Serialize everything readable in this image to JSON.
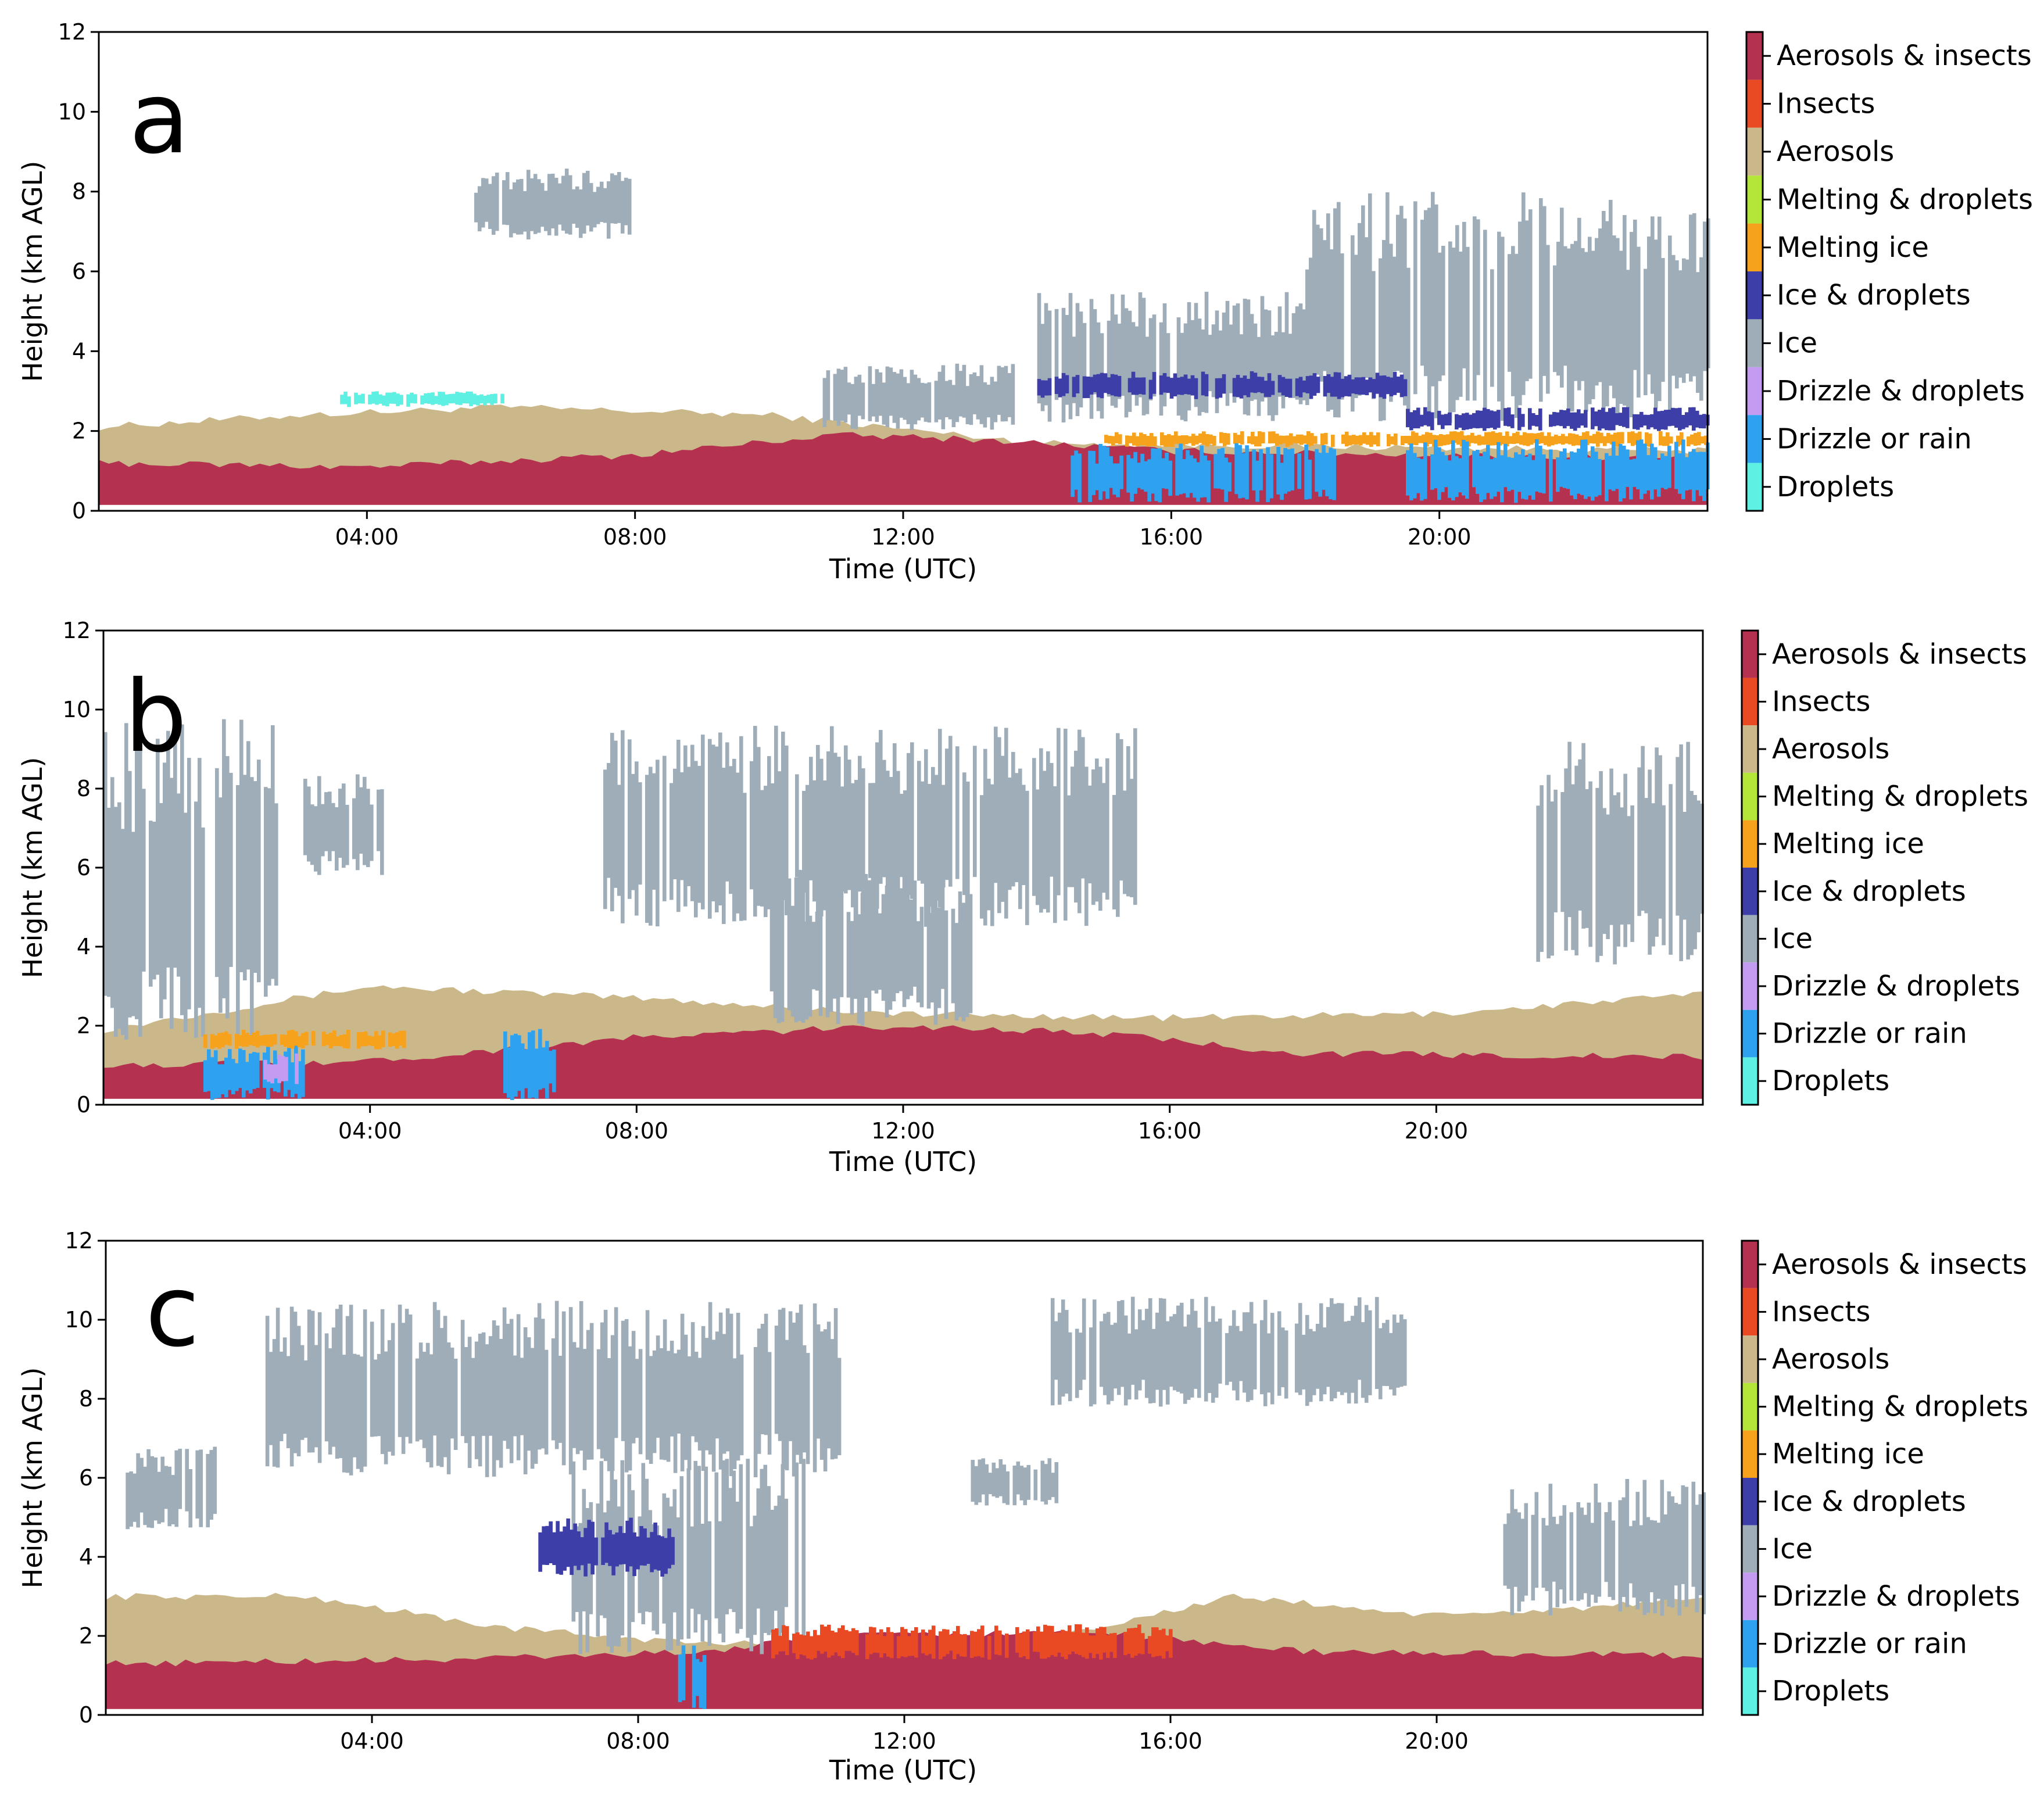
{
  "categories": [
    {
      "name": "Droplets",
      "color": "#5df0e3"
    },
    {
      "name": "Drizzle or rain",
      "color": "#2ea2ef"
    },
    {
      "name": "Drizzle & droplets",
      "color": "#c39cf2"
    },
    {
      "name": "Ice",
      "color": "#9eadb8"
    },
    {
      "name": "Ice & droplets",
      "color": "#3e3ea8"
    },
    {
      "name": "Melting ice",
      "color": "#f7a21c"
    },
    {
      "name": "Melting & droplets",
      "color": "#b3e639"
    },
    {
      "name": "Aerosols",
      "color": "#cbb88a"
    },
    {
      "name": "Insects",
      "color": "#ea4a23"
    },
    {
      "name": "Aerosols & insects",
      "color": "#b53150"
    }
  ],
  "chart_data": [
    {
      "type": "heatmap",
      "panel_label": "a",
      "xlabel": "Time (UTC)",
      "ylabel": "Height (km AGL)",
      "xlim": [
        0,
        24
      ],
      "ylim": [
        0,
        12
      ],
      "xtick_values": [
        4,
        8,
        12,
        16,
        20
      ],
      "xtick_labels": [
        "04:00",
        "08:00",
        "12:00",
        "16:00",
        "20:00"
      ],
      "ytick_values": [
        0,
        2,
        4,
        6,
        8,
        10,
        12
      ],
      "ytick_labels": [
        "0",
        "2",
        "4",
        "6",
        "8",
        "10",
        "12"
      ],
      "layers": {
        "aerosols_top": [
          [
            0,
            2.1
          ],
          [
            3,
            2.4
          ],
          [
            6,
            2.6
          ],
          [
            10,
            2.4
          ],
          [
            14,
            1.7
          ],
          [
            24,
            1.5
          ]
        ],
        "aerosols_insects_top": [
          [
            0,
            1.2
          ],
          [
            4,
            1.1
          ],
          [
            8,
            1.4
          ],
          [
            11,
            1.9
          ],
          [
            13,
            1.8
          ],
          [
            16,
            1.5
          ],
          [
            24,
            1.3
          ]
        ]
      },
      "regions": [
        {
          "category": "Ice",
          "x": [
            5.6,
            7.9
          ],
          "y": [
            6.8,
            8.6
          ]
        },
        {
          "category": "Ice",
          "x": [
            10.8,
            13.7
          ],
          "y": [
            2.0,
            3.7
          ]
        },
        {
          "category": "Ice",
          "x": [
            14.0,
            18.0
          ],
          "y": [
            2.2,
            5.5
          ]
        },
        {
          "category": "Ice",
          "x": [
            18.0,
            24.0
          ],
          "y": [
            2.2,
            8.0
          ]
        },
        {
          "category": "Ice & droplets",
          "x": [
            14.0,
            19.5
          ],
          "y": [
            2.8,
            3.5
          ]
        },
        {
          "category": "Ice & droplets",
          "x": [
            19.5,
            24.0
          ],
          "y": [
            2.0,
            2.6
          ]
        },
        {
          "category": "Melting ice",
          "x": [
            15.0,
            24.0
          ],
          "y": [
            1.6,
            2.0
          ]
        },
        {
          "category": "Drizzle or rain",
          "x": [
            14.5,
            18.5
          ],
          "y": [
            0.2,
            1.7
          ]
        },
        {
          "category": "Drizzle or rain",
          "x": [
            19.5,
            24.0
          ],
          "y": [
            0.2,
            1.8
          ]
        },
        {
          "category": "Droplets",
          "x": [
            3.6,
            6.0
          ],
          "y": [
            2.6,
            3.0
          ]
        }
      ]
    },
    {
      "type": "heatmap",
      "panel_label": "b",
      "xlabel": "Time (UTC)",
      "ylabel": "Height (km AGL)",
      "xlim": [
        0,
        24
      ],
      "ylim": [
        0,
        12
      ],
      "xtick_values": [
        4,
        8,
        12,
        16,
        20
      ],
      "xtick_labels": [
        "04:00",
        "08:00",
        "12:00",
        "16:00",
        "20:00"
      ],
      "ytick_values": [
        0,
        2,
        4,
        6,
        8,
        10,
        12
      ],
      "ytick_labels": [
        "0",
        "2",
        "4",
        "6",
        "8",
        "10",
        "12"
      ],
      "layers": {
        "aerosols_top": [
          [
            0,
            1.9
          ],
          [
            4,
            3.0
          ],
          [
            8,
            2.7
          ],
          [
            12,
            2.3
          ],
          [
            16,
            2.2
          ],
          [
            20,
            2.3
          ],
          [
            24,
            2.8
          ]
        ],
        "aerosols_insects_top": [
          [
            0,
            1.0
          ],
          [
            4,
            1.1
          ],
          [
            8,
            1.7
          ],
          [
            12,
            2.0
          ],
          [
            15,
            1.8
          ],
          [
            18,
            1.3
          ],
          [
            24,
            1.2
          ]
        ]
      },
      "regions": [
        {
          "category": "Ice",
          "x": [
            0.0,
            2.6
          ],
          "y": [
            1.5,
            9.8
          ]
        },
        {
          "category": "Ice",
          "x": [
            3.0,
            4.2
          ],
          "y": [
            5.8,
            8.4
          ]
        },
        {
          "category": "Ice",
          "x": [
            7.5,
            15.5
          ],
          "y": [
            4.5,
            9.6
          ]
        },
        {
          "category": "Ice",
          "x": [
            10.0,
            13.0
          ],
          "y": [
            2.0,
            6.0
          ]
        },
        {
          "category": "Ice",
          "x": [
            21.5,
            24.0
          ],
          "y": [
            3.5,
            9.2
          ]
        },
        {
          "category": "Drizzle or rain",
          "x": [
            1.5,
            3.0
          ],
          "y": [
            0.1,
            1.5
          ]
        },
        {
          "category": "Drizzle or rain",
          "x": [
            6.0,
            6.8
          ],
          "y": [
            0.1,
            2.0
          ]
        },
        {
          "category": "Drizzle & droplets",
          "x": [
            2.4,
            2.9
          ],
          "y": [
            0.5,
            1.3
          ]
        },
        {
          "category": "Melting ice",
          "x": [
            1.5,
            4.5
          ],
          "y": [
            1.4,
            1.9
          ]
        }
      ]
    },
    {
      "type": "heatmap",
      "panel_label": "c",
      "xlabel": "Time (UTC)",
      "ylabel": "Height (km AGL)",
      "xlim": [
        0,
        24
      ],
      "ylim": [
        0,
        12
      ],
      "xtick_values": [
        4,
        8,
        12,
        16,
        20
      ],
      "xtick_labels": [
        "04:00",
        "08:00",
        "12:00",
        "16:00",
        "20:00"
      ],
      "ytick_values": [
        0,
        2,
        4,
        6,
        8,
        10,
        12
      ],
      "ytick_labels": [
        "0",
        "2",
        "4",
        "6",
        "8",
        "10",
        "12"
      ],
      "layers": {
        "aerosols_top": [
          [
            0,
            3.0
          ],
          [
            3,
            3.0
          ],
          [
            6,
            2.2
          ],
          [
            9,
            1.8
          ],
          [
            14,
            1.9
          ],
          [
            17,
            3.0
          ],
          [
            20,
            2.5
          ],
          [
            24,
            2.9
          ]
        ],
        "aerosols_insects_top": [
          [
            0,
            1.3
          ],
          [
            5,
            1.4
          ],
          [
            9,
            1.6
          ],
          [
            11,
            2.0
          ],
          [
            15,
            2.1
          ],
          [
            18,
            1.6
          ],
          [
            24,
            1.5
          ]
        ]
      },
      "regions": [
        {
          "category": "Ice",
          "x": [
            2.4,
            11.0
          ],
          "y": [
            6.0,
            10.5
          ]
        },
        {
          "category": "Ice",
          "x": [
            7.0,
            10.5
          ],
          "y": [
            1.5,
            6.5
          ]
        },
        {
          "category": "Ice",
          "x": [
            0.3,
            1.7
          ],
          "y": [
            4.7,
            6.8
          ]
        },
        {
          "category": "Ice",
          "x": [
            13.0,
            14.3
          ],
          "y": [
            5.3,
            6.5
          ]
        },
        {
          "category": "Ice",
          "x": [
            14.2,
            19.5
          ],
          "y": [
            7.8,
            10.6
          ]
        },
        {
          "category": "Ice",
          "x": [
            21.0,
            24.0
          ],
          "y": [
            2.5,
            6.0
          ]
        },
        {
          "category": "Ice & droplets",
          "x": [
            6.5,
            8.5
          ],
          "y": [
            3.5,
            5.0
          ]
        },
        {
          "category": "Drizzle or rain",
          "x": [
            8.6,
            9.0
          ],
          "y": [
            0.1,
            2.0
          ]
        },
        {
          "category": "Insects",
          "x": [
            10.0,
            16.0
          ],
          "y": [
            1.4,
            2.3
          ]
        }
      ]
    }
  ]
}
